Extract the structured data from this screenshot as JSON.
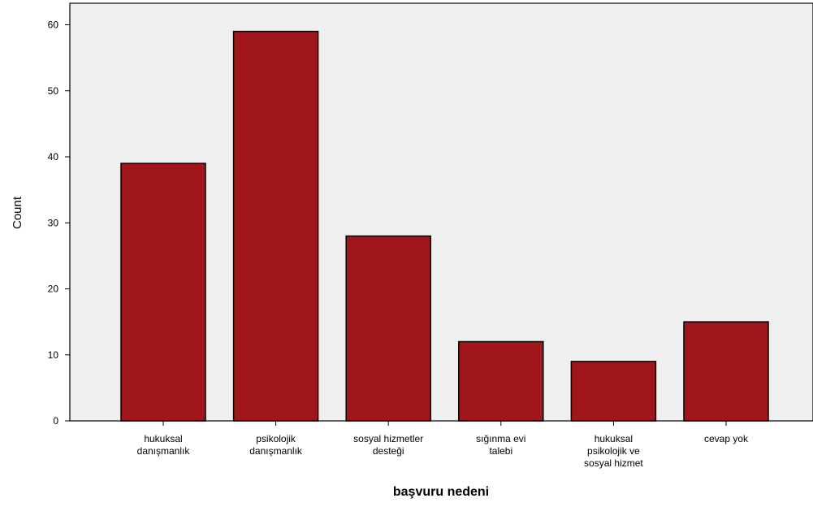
{
  "chart_data": {
    "type": "bar",
    "categories": [
      [
        "hukuksal",
        "danışmanlık"
      ],
      [
        "psikolojik",
        "danışmanlık"
      ],
      [
        "sosyal hizmetler",
        "desteği"
      ],
      [
        "sığınma evi",
        "talebi"
      ],
      [
        "hukuksal",
        "psikolojik ve",
        "sosyal hizmet"
      ],
      [
        "cevap yok"
      ]
    ],
    "values": [
      39,
      59,
      28,
      12,
      9,
      15
    ],
    "xlabel": "başvuru nedeni",
    "ylabel": "Count",
    "ylim": [
      0,
      60
    ],
    "yticks": [
      0,
      10,
      20,
      30,
      40,
      50,
      60
    ],
    "grid": false,
    "colors": {
      "bar": "#a0161a",
      "plot_background": "#efefef",
      "axis": "#000000"
    }
  }
}
